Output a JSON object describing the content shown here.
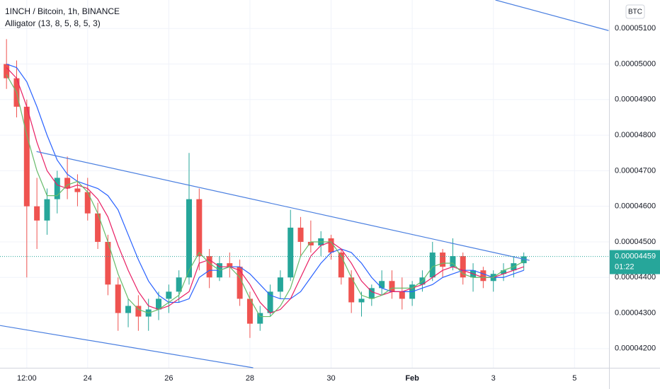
{
  "chart_data": {
    "type": "candlestick",
    "title": "1INCH / Bitcoin, 1h, BINANCE",
    "indicator": "Alligator (13, 8, 5, 8, 5, 3)",
    "currency": "BTC",
    "up_color": "#26a69a",
    "down_color": "#ef5350",
    "x": [
      22,
      22.25,
      22.5,
      22.75,
      23,
      23.25,
      23.5,
      23.75,
      24,
      24.25,
      24.5,
      24.75,
      25,
      25.25,
      25.5,
      25.75,
      26,
      26.25,
      26.5,
      26.75,
      27,
      27.25,
      27.5,
      27.75,
      28,
      28.25,
      28.5,
      28.75,
      29,
      29.25,
      29.5,
      29.75,
      30,
      30.25,
      30.5,
      30.75,
      31,
      31.25,
      31.5,
      31.75,
      32,
      32.25,
      32.5,
      32.75,
      33,
      33.25,
      33.5,
      33.75,
      34,
      34.25,
      34.5,
      34.75
    ],
    "open": [
      5e-05,
      4.96e-05,
      4.88e-05,
      4.6e-05,
      4.56e-05,
      4.62e-05,
      4.68e-05,
      4.65e-05,
      4.64e-05,
      4.58e-05,
      4.5e-05,
      4.38e-05,
      4.3e-05,
      4.32e-05,
      4.29e-05,
      4.31e-05,
      4.34e-05,
      4.36e-05,
      4.4e-05,
      4.62e-05,
      4.46e-05,
      4.4e-05,
      4.44e-05,
      4.43e-05,
      4.34e-05,
      4.27e-05,
      4.3e-05,
      4.36e-05,
      4.4e-05,
      4.54e-05,
      4.5e-05,
      4.49e-05,
      4.51e-05,
      4.47e-05,
      4.4e-05,
      4.33e-05,
      4.34e-05,
      4.37e-05,
      4.39e-05,
      4.36e-05,
      4.34e-05,
      4.38e-05,
      4.4e-05,
      4.47e-05,
      4.43e-05,
      4.46e-05,
      4.4e-05,
      4.42e-05,
      4.39e-05,
      4.41e-05,
      4.42e-05,
      4.44e-05
    ],
    "high": [
      5.07e-05,
      5.01e-05,
      4.9e-05,
      4.68e-05,
      4.65e-05,
      4.7e-05,
      4.74e-05,
      4.69e-05,
      4.68e-05,
      4.61e-05,
      4.52e-05,
      4.4e-05,
      4.34e-05,
      4.35e-05,
      4.34e-05,
      4.36e-05,
      4.38e-05,
      4.42e-05,
      4.75e-05,
      4.65e-05,
      4.48e-05,
      4.46e-05,
      4.47e-05,
      4.45e-05,
      4.36e-05,
      4.32e-05,
      4.38e-05,
      4.42e-05,
      4.59e-05,
      4.57e-05,
      4.56e-05,
      4.53e-05,
      4.52e-05,
      4.48e-05,
      4.42e-05,
      4.36e-05,
      4.38e-05,
      4.42e-05,
      4.42e-05,
      4.4e-05,
      4.39e-05,
      4.42e-05,
      4.5e-05,
      4.48e-05,
      4.51e-05,
      4.47e-05,
      4.44e-05,
      4.43e-05,
      4.42e-05,
      4.44e-05,
      4.46e-05,
      4.47e-05
    ],
    "low": [
      4.93e-05,
      4.85e-05,
      4.4e-05,
      4.48e-05,
      4.52e-05,
      4.58e-05,
      4.62e-05,
      4.6e-05,
      4.56e-05,
      4.48e-05,
      4.35e-05,
      4.25e-05,
      4.26e-05,
      4.25e-05,
      4.25e-05,
      4.28e-05,
      4.3e-05,
      4.33e-05,
      4.38e-05,
      4.42e-05,
      4.37e-05,
      4.39e-05,
      4.4e-05,
      4.32e-05,
      4.23e-05,
      4.25e-05,
      4.29e-05,
      4.34e-05,
      4.39e-05,
      4.46e-05,
      4.47e-05,
      4.46e-05,
      4.45e-05,
      4.38e-05,
      4.3e-05,
      4.29e-05,
      4.32e-05,
      4.35e-05,
      4.34e-05,
      4.31e-05,
      4.32e-05,
      4.36e-05,
      4.39e-05,
      4.4e-05,
      4.42e-05,
      4.38e-05,
      4.36e-05,
      4.37e-05,
      4.36e-05,
      4.39e-05,
      4.4e-05,
      4.42e-05
    ],
    "close": [
      4.96e-05,
      4.88e-05,
      4.6e-05,
      4.56e-05,
      4.62e-05,
      4.68e-05,
      4.65e-05,
      4.64e-05,
      4.58e-05,
      4.5e-05,
      4.38e-05,
      4.3e-05,
      4.32e-05,
      4.29e-05,
      4.31e-05,
      4.34e-05,
      4.36e-05,
      4.4e-05,
      4.62e-05,
      4.46e-05,
      4.4e-05,
      4.44e-05,
      4.43e-05,
      4.34e-05,
      4.27e-05,
      4.3e-05,
      4.36e-05,
      4.4e-05,
      4.54e-05,
      4.5e-05,
      4.49e-05,
      4.51e-05,
      4.47e-05,
      4.4e-05,
      4.33e-05,
      4.34e-05,
      4.37e-05,
      4.39e-05,
      4.36e-05,
      4.34e-05,
      4.38e-05,
      4.4e-05,
      4.47e-05,
      4.43e-05,
      4.46e-05,
      4.4e-05,
      4.42e-05,
      4.39e-05,
      4.41e-05,
      4.42e-05,
      4.44e-05,
      4.459e-05
    ],
    "series": [
      {
        "color": "#2962ff",
        "values": [
          5e-05,
          4.99e-05,
          4.95e-05,
          4.88e-05,
          4.8e-05,
          4.73e-05,
          4.69e-05,
          4.67e-05,
          4.66e-05,
          4.65e-05,
          4.63e-05,
          4.59e-05,
          4.52e-05,
          4.45e-05,
          4.39e-05,
          4.35e-05,
          4.33e-05,
          4.33e-05,
          4.34e-05,
          4.4e-05,
          4.42e-05,
          4.42e-05,
          4.43e-05,
          4.43e-05,
          4.41e-05,
          4.38e-05,
          4.35e-05,
          4.34e-05,
          4.34e-05,
          4.36e-05,
          4.4e-05,
          4.44e-05,
          4.47e-05,
          4.48e-05,
          4.47e-05,
          4.44e-05,
          4.4e-05,
          4.37e-05,
          4.36e-05,
          4.36e-05,
          4.36e-05,
          4.37e-05,
          4.38e-05,
          4.4e-05,
          4.41e-05,
          4.42e-05,
          4.42e-05,
          4.41e-05,
          4.4e-05,
          4.4e-05,
          4.41e-05,
          4.42e-05
        ]
      },
      {
        "color": "#e91e63",
        "values": [
          4.99e-05,
          4.96e-05,
          4.88e-05,
          4.78e-05,
          4.7e-05,
          4.66e-05,
          4.65e-05,
          4.66e-05,
          4.65e-05,
          4.62e-05,
          4.57e-05,
          4.49e-05,
          4.42e-05,
          4.36e-05,
          4.32e-05,
          4.31e-05,
          4.32e-05,
          4.34e-05,
          4.36e-05,
          4.44e-05,
          4.45e-05,
          4.43e-05,
          4.43e-05,
          4.42e-05,
          4.38e-05,
          4.33e-05,
          4.3e-05,
          4.31e-05,
          4.34e-05,
          4.4e-05,
          4.46e-05,
          4.49e-05,
          4.5e-05,
          4.48e-05,
          4.44e-05,
          4.39e-05,
          4.36e-05,
          4.35e-05,
          4.36e-05,
          4.36e-05,
          4.37e-05,
          4.38e-05,
          4.4e-05,
          4.42e-05,
          4.43e-05,
          4.42e-05,
          4.41e-05,
          4.4e-05,
          4.4e-05,
          4.41e-05,
          4.42e-05,
          4.43e-05
        ]
      },
      {
        "color": "#66bb6a",
        "values": [
          4.97e-05,
          4.92e-05,
          4.8e-05,
          4.7e-05,
          4.63e-05,
          4.63e-05,
          4.66e-05,
          4.67e-05,
          4.64e-05,
          4.58e-05,
          4.5e-05,
          4.41e-05,
          4.34e-05,
          4.31e-05,
          4.3e-05,
          4.31e-05,
          4.33e-05,
          4.35e-05,
          4.42e-05,
          4.47e-05,
          4.44e-05,
          4.42e-05,
          4.43e-05,
          4.4e-05,
          4.34e-05,
          4.29e-05,
          4.29e-05,
          4.32e-05,
          4.37e-05,
          4.46e-05,
          4.5e-05,
          4.5e-05,
          4.5e-05,
          4.46e-05,
          4.4e-05,
          4.35e-05,
          4.34e-05,
          4.35e-05,
          4.37e-05,
          4.37e-05,
          4.37e-05,
          4.39e-05,
          4.43e-05,
          4.44e-05,
          4.44e-05,
          4.41e-05,
          4.4e-05,
          4.4e-05,
          4.4e-05,
          4.42e-05,
          4.43e-05,
          4.445e-05
        ]
      }
    ],
    "trendline_color": "#4a7fe0",
    "trendlines": [
      {
        "x": [
          22.74,
          34.89
        ],
        "y": [
          4.754e-05,
          4.448e-05
        ]
      },
      {
        "x": [
          34.05,
          36.84
        ],
        "y": [
          5.18e-05,
          5.094e-05
        ]
      },
      {
        "x": [
          21.84,
          28.08
        ],
        "y": [
          4.265e-05,
          4.146e-05
        ]
      }
    ],
    "last_price": 4.459e-05,
    "countdown": "01:22",
    "xlim": [
      21.84,
      36.85
    ],
    "xticks": [
      {
        "value": 22.5,
        "label": "12:00"
      },
      24,
      26,
      28,
      30,
      {
        "value": 32,
        "label": "Feb"
      },
      {
        "value": 34,
        "label": "3"
      },
      {
        "value": 36,
        "label": "5"
      }
    ],
    "ylim": [
      4.146e-05,
      5.18e-05
    ],
    "yticks": [
      {
        "value": 5.1e-05,
        "label": "0.00005100"
      },
      {
        "value": 5e-05,
        "label": "0.00005000"
      },
      {
        "value": 4.9e-05,
        "label": "0.00004900"
      },
      {
        "value": 4.8e-05,
        "label": "0.00004800"
      },
      {
        "value": 4.7e-05,
        "label": "0.00004700"
      },
      {
        "value": 4.6e-05,
        "label": "0.00004600"
      },
      {
        "value": 4.5e-05,
        "label": "0.00004500"
      },
      {
        "value": 4.4e-05,
        "label": "0.00004400"
      },
      {
        "value": 4.3e-05,
        "label": "0.00004300"
      },
      {
        "value": 4.2e-05,
        "label": "0.00004200"
      }
    ]
  }
}
